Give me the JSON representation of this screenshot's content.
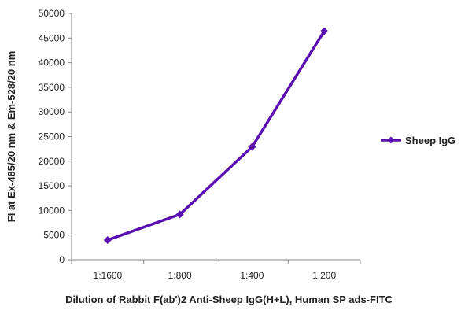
{
  "chart_data": {
    "type": "line",
    "categories": [
      "1:1600",
      "1:800",
      "1:400",
      "1:200"
    ],
    "series": [
      {
        "name": "Sheep IgG",
        "values": [
          4000,
          9200,
          22900,
          46400
        ],
        "color": "#5a10b0"
      }
    ],
    "xlabel": "Dilution of Rabbit F(ab')2 Anti-Sheep IgG(H+L), Human SP ads-FITC",
    "ylabel": "FI at Ex-485/20 nm & Em-528/20 nm",
    "ylim": [
      0,
      50000
    ],
    "yticks": [
      0,
      5000,
      10000,
      15000,
      20000,
      25000,
      30000,
      35000,
      40000,
      45000,
      50000
    ],
    "grid": false,
    "legend_position": "right"
  }
}
